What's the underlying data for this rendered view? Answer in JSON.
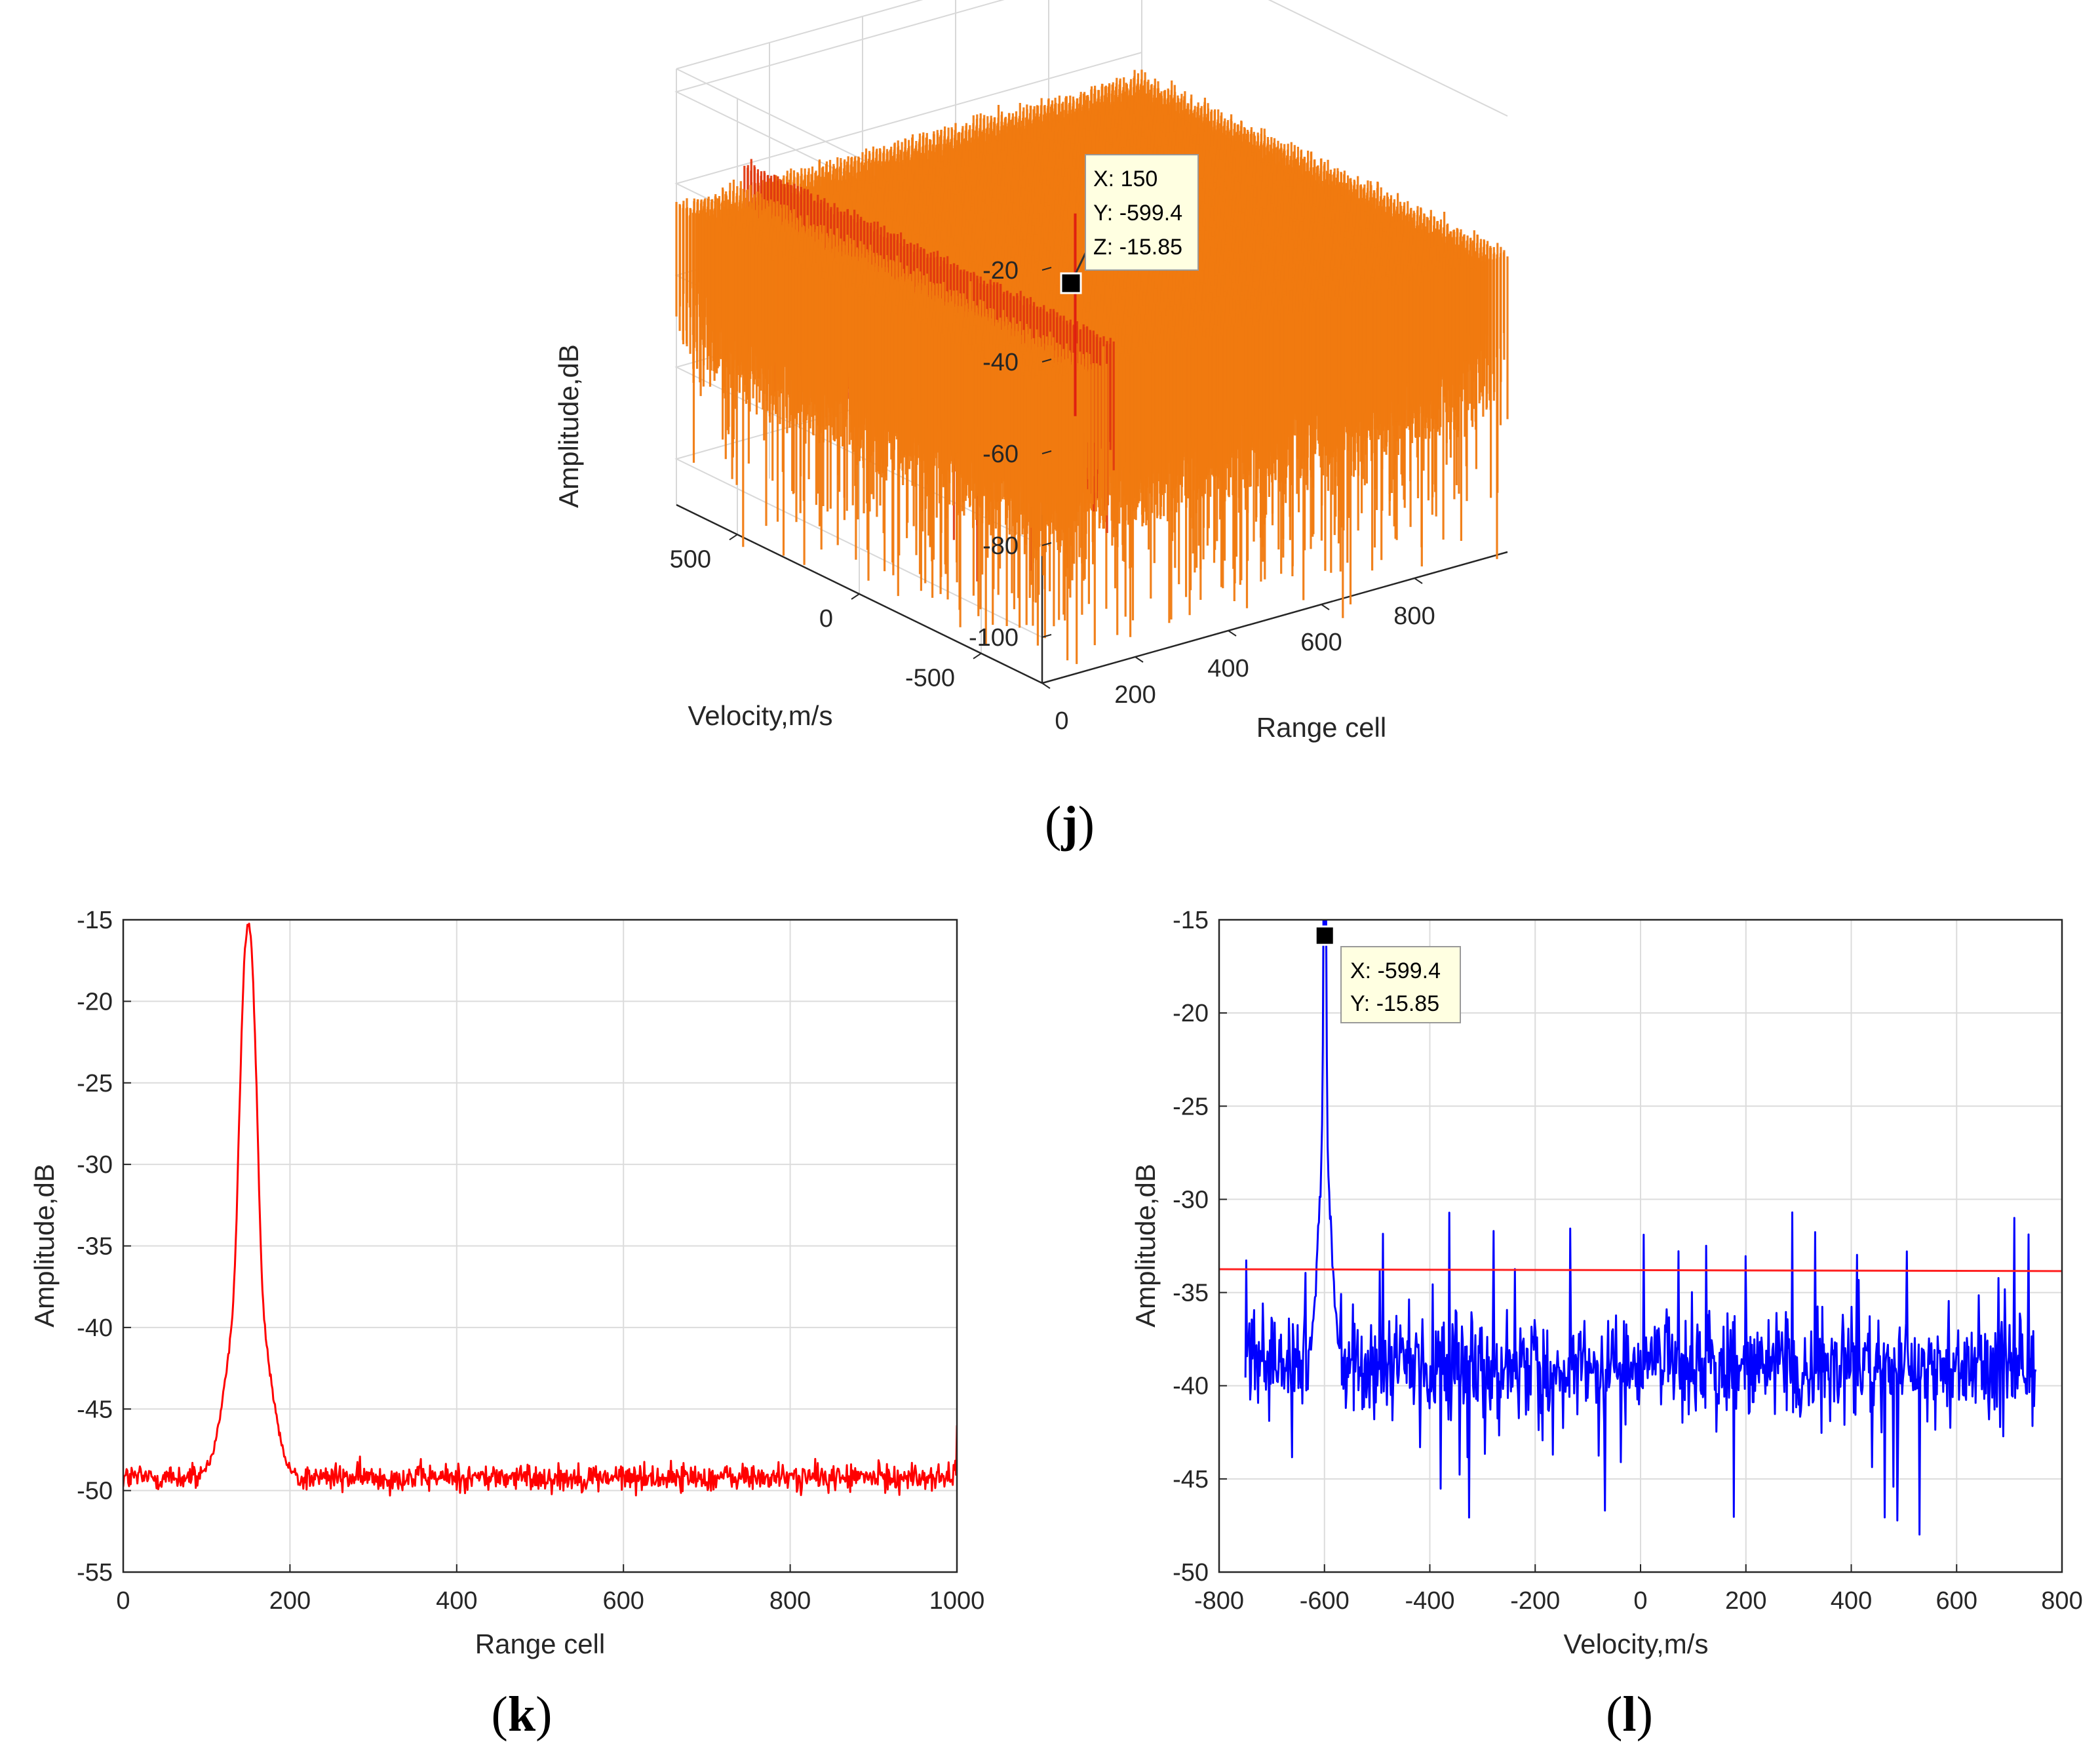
{
  "chart_data": [
    {
      "id": "j",
      "type": "surface3d",
      "panel_open": "(",
      "panel_letter": "j",
      "panel_close": ")",
      "xlabel": "Range cell",
      "ylabel": "Velocity,m/s",
      "zlabel": "Amplitude,dB",
      "x_ticks": [
        "0",
        "200",
        "400",
        "600",
        "800"
      ],
      "y_ticks": [
        "500",
        "0",
        "-500"
      ],
      "z_ticks": [
        "-20",
        "-40",
        "-60",
        "-80",
        "-100"
      ],
      "xlim": [
        0,
        1000
      ],
      "ylim": [
        -750,
        750
      ],
      "zlim": [
        -110,
        -15
      ],
      "noise_floor_db": -49,
      "ridge": {
        "range_cell": 150,
        "level_db": -40
      },
      "datatip": {
        "x": "X: 150",
        "y": "Y: -599.4",
        "z": "Z: -15.85"
      },
      "colormap": [
        "#2ec4b0",
        "#55d96a",
        "#a8e83a",
        "#e8ec1e",
        "#f5b800",
        "#f07a10",
        "#e03a10"
      ]
    },
    {
      "id": "k",
      "type": "line",
      "panel_open": "(",
      "panel_letter": "k",
      "panel_close": ")",
      "xlabel": "Range cell",
      "ylabel": "Amplitude,dB",
      "xlim": [
        0,
        1000
      ],
      "ylim": [
        -55,
        -15
      ],
      "x_ticks": [
        "0",
        "200",
        "400",
        "600",
        "800",
        "1000"
      ],
      "y_ticks": [
        "-15",
        "-20",
        "-25",
        "-30",
        "-35",
        "-40",
        "-45",
        "-50",
        "-55"
      ],
      "line_color": "#ff0000",
      "peak": {
        "x": 150,
        "y": -16
      },
      "noise_floor_db": -49.2,
      "noise_span_db": 1.2,
      "num_points": 1000
    },
    {
      "id": "l",
      "type": "line",
      "panel_open": "(",
      "panel_letter": "l",
      "panel_close": ")",
      "xlabel": "Velocity,m/s",
      "ylabel": "Amplitude,dB",
      "xlim": [
        -800,
        800
      ],
      "ylim": [
        -50,
        -15
      ],
      "x_ticks": [
        "-800",
        "-600",
        "-400",
        "-200",
        "0",
        "200",
        "400",
        "600",
        "800"
      ],
      "y_ticks": [
        "-15",
        "-20",
        "-25",
        "-30",
        "-35",
        "-40",
        "-45",
        "-50"
      ],
      "line_color": "#0000ff",
      "data_x_range": [
        -750,
        750
      ],
      "peak": {
        "x": -599.4,
        "y": -15.85
      },
      "noise_floor_db": -39,
      "noise_span_db": 3.5,
      "threshold": {
        "y": -33.8,
        "color": "#ff2020"
      },
      "datatip": {
        "x": "X: -599.4",
        "y": "Y: -15.85"
      },
      "num_points": 1000
    }
  ]
}
